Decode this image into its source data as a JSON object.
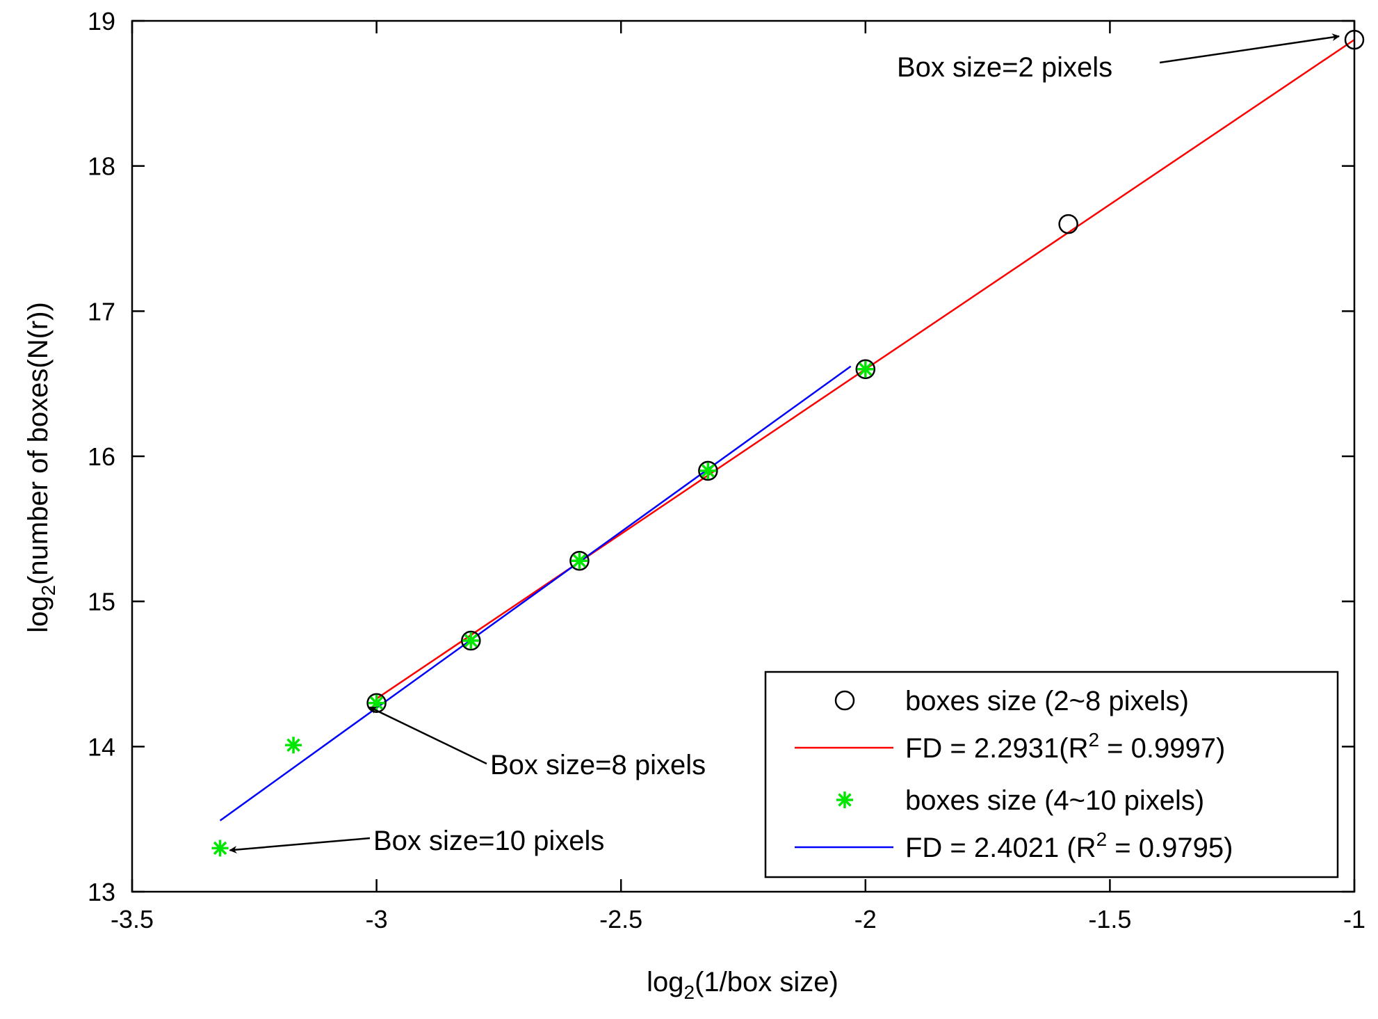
{
  "chart_data": {
    "type": "scatter",
    "xlabel": {
      "main": "log",
      "sub": "2",
      "rest": "(1/box size)"
    },
    "ylabel": {
      "main": "log",
      "sub": "2",
      "rest": "(number of boxes(N(r))"
    },
    "xlim": [
      -3.5,
      -1
    ],
    "ylim": [
      13,
      19
    ],
    "xticks": [
      -3.5,
      -3,
      -2.5,
      -2,
      -1.5,
      -1
    ],
    "xtick_labels": [
      "-3.5",
      "-3",
      "-2.5",
      "-2",
      "-1.5",
      "-1"
    ],
    "yticks": [
      13,
      14,
      15,
      16,
      17,
      18,
      19
    ],
    "ytick_labels": [
      "13",
      "14",
      "15",
      "16",
      "17",
      "18",
      "19"
    ],
    "grid": false,
    "series": [
      {
        "name": "boxes size (2~8  pixels)",
        "kind": "markers",
        "marker": "circle",
        "color": "#000000",
        "x": [
          -1,
          -1.585,
          -2,
          -2.322,
          -2.585,
          -2.807,
          -3
        ],
        "y": [
          18.87,
          17.6,
          16.6,
          15.9,
          15.28,
          14.73,
          14.3
        ]
      },
      {
        "name": "FD = 2.2931(R² = 0.9997)",
        "legend": {
          "main": "FD = 2.2931(R",
          "sup": "2",
          "rest": " = 0.9997)"
        },
        "kind": "line",
        "color": "#ff0000",
        "x": [
          -3,
          -1
        ],
        "y": [
          14.33,
          18.87
        ]
      },
      {
        "name": "boxes size (4~10 pixels)",
        "kind": "markers",
        "marker": "asterisk",
        "color": "#00e600",
        "x": [
          -2,
          -2.322,
          -2.585,
          -2.807,
          -3,
          -3.17,
          -3.32
        ],
        "y": [
          16.6,
          15.9,
          15.28,
          14.73,
          14.3,
          14.01,
          13.3
        ]
      },
      {
        "name": "FD = 2.4021 (R² = 0.9795)",
        "legend": {
          "main": "FD = 2.4021 (R",
          "sup": "2",
          "rest": " = 0.9795)"
        },
        "kind": "line",
        "color": "#0000ff",
        "x": [
          -3.32,
          -2.03
        ],
        "y": [
          13.49,
          16.62
        ]
      }
    ],
    "annotations": [
      {
        "text": "Box size=2 pixels",
        "point": [
          -1,
          18.87
        ]
      },
      {
        "text": "Box size=8 pixels",
        "point": [
          -3,
          14.3
        ]
      },
      {
        "text": "Box size=10 pixels",
        "point": [
          -3.32,
          13.3
        ]
      }
    ],
    "legend_position": "bottom-right"
  }
}
